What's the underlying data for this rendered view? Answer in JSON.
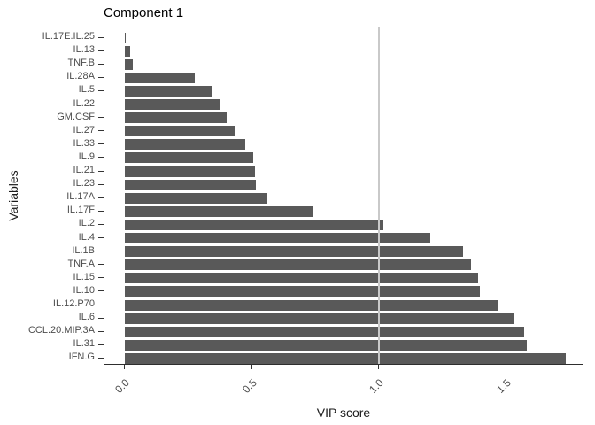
{
  "title": "Component 1",
  "axes": {
    "x_title": "VIP score",
    "y_title": "Variables",
    "x_tick_labels": [
      "0.0",
      "0.5",
      "1.0",
      "1.5"
    ],
    "x_tick_values": [
      0.0,
      0.5,
      1.0,
      1.5
    ]
  },
  "colors": {
    "bar_fill": "#595959",
    "reference_line": "#c9c9c9",
    "panel_border": "#2e2e2e",
    "axis_text": "#4d4d4d",
    "title_text": "#000000"
  },
  "chart_data": {
    "type": "bar",
    "orientation": "horizontal",
    "title": "Component 1",
    "xlabel": "VIP score",
    "ylabel": "Variables",
    "xlim": [
      0,
      1.81
    ],
    "x_ticks": [
      0.0,
      0.5,
      1.0,
      1.5
    ],
    "grid": "off",
    "reference_line_x": 1.0,
    "categories": [
      "IL.17E.IL.25",
      "IL.13",
      "TNF.B",
      "IL.28A",
      "IL.5",
      "IL.22",
      "GM.CSF",
      "IL.27",
      "IL.33",
      "IL.9",
      "IL.21",
      "IL.23",
      "IL.17A",
      "IL.17F",
      "IL.2",
      "IL.4",
      "IL.1B",
      "TNF.A",
      "IL.15",
      "IL.10",
      "IL.12.P70",
      "IL.6",
      "CCL.20.MIP.3A",
      "IL.31",
      "IFN.G"
    ],
    "values": [
      0.005,
      0.02,
      0.03,
      0.275,
      0.34,
      0.375,
      0.4,
      0.43,
      0.475,
      0.505,
      0.51,
      0.515,
      0.56,
      0.74,
      1.015,
      1.2,
      1.33,
      1.36,
      1.39,
      1.395,
      1.465,
      1.53,
      1.57,
      1.58,
      1.735
    ]
  }
}
